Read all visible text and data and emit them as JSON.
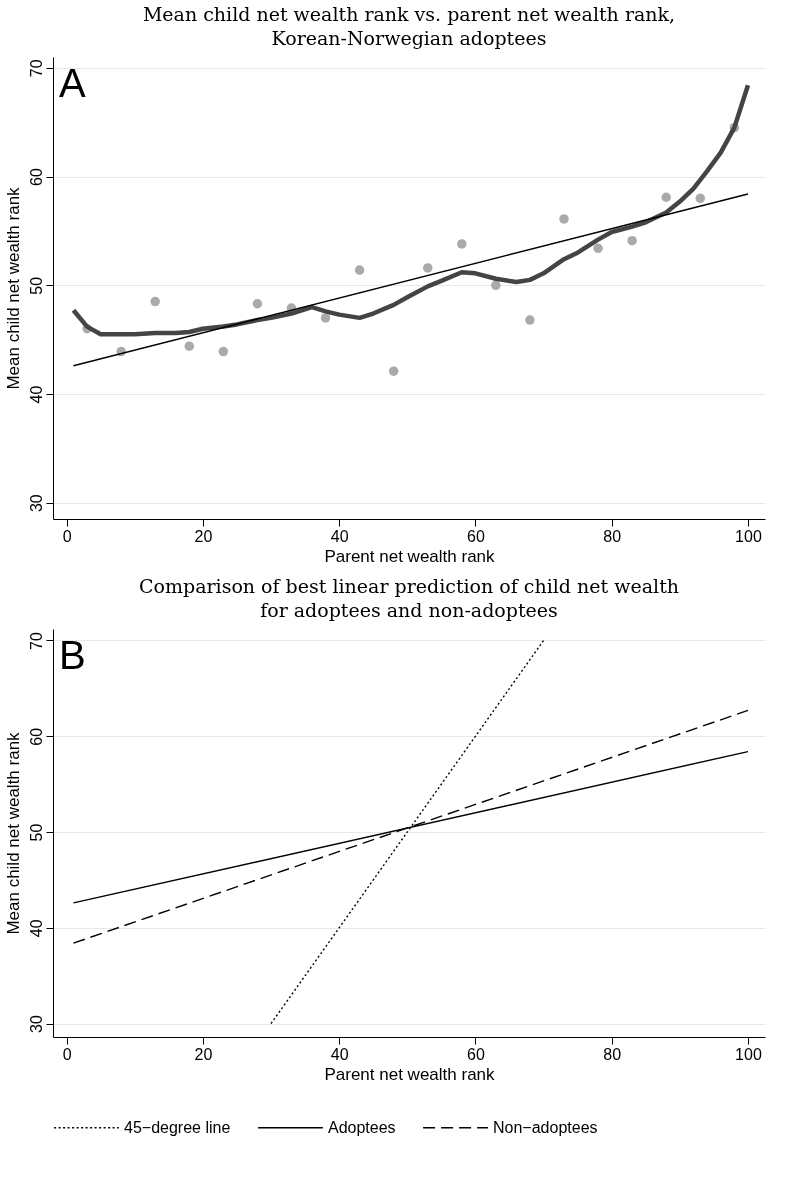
{
  "chart_data": [
    {
      "type": "scatter",
      "title": "Mean child net wealth rank vs. parent net wealth rank,\nKorean-Norwegian adoptees",
      "xlabel": "Parent net wealth rank",
      "ylabel": "Mean child net wealth rank",
      "annotations": [
        "A"
      ],
      "xlim": [
        -2,
        102.5
      ],
      "ylim": [
        28.5,
        71
      ],
      "xticks": [
        0,
        20,
        40,
        60,
        80,
        100
      ],
      "yticks": [
        30,
        40,
        50,
        60,
        70
      ],
      "grid": "y",
      "series": [
        {
          "type": "scatter",
          "marker": "circle",
          "color": "#aaaaaa",
          "x": [
            3,
            8,
            13,
            18,
            23,
            28,
            33,
            38,
            43,
            48,
            53,
            58,
            63,
            68,
            73,
            78,
            83,
            88,
            93,
            98
          ],
          "values": [
            46.0,
            43.9,
            48.5,
            44.4,
            43.9,
            48.3,
            47.9,
            47.0,
            51.4,
            42.1,
            51.6,
            53.8,
            50.0,
            46.8,
            56.1,
            53.4,
            54.1,
            58.1,
            58.0,
            64.5
          ]
        },
        {
          "type": "line",
          "line_style": "solid",
          "color": "#444444",
          "x": [
            1,
            3,
            5,
            8,
            10,
            13,
            16,
            18,
            20,
            23,
            25,
            28,
            30,
            33,
            36,
            38,
            40,
            43,
            45,
            48,
            50,
            53,
            55,
            58,
            60,
            63,
            66,
            68,
            70,
            73,
            75,
            78,
            80,
            83,
            85,
            88,
            90,
            92,
            94,
            96,
            98,
            100
          ],
          "values": [
            47.7,
            46.2,
            45.5,
            45.5,
            45.5,
            45.6,
            45.6,
            45.7,
            46.0,
            46.2,
            46.4,
            46.8,
            47.0,
            47.4,
            48.0,
            47.6,
            47.3,
            47.0,
            47.4,
            48.2,
            48.9,
            49.9,
            50.4,
            51.2,
            51.1,
            50.6,
            50.3,
            50.5,
            51.1,
            52.4,
            53.0,
            54.2,
            54.9,
            55.4,
            55.8,
            56.7,
            57.7,
            58.9,
            60.5,
            62.2,
            64.5,
            68.4
          ]
        },
        {
          "type": "line",
          "line_style": "solid",
          "color": "#000000",
          "x": [
            1,
            100
          ],
          "values": [
            42.6,
            58.4
          ]
        }
      ]
    },
    {
      "type": "line",
      "title": "Comparison of best linear prediction of child net wealth\nfor adoptees and non-adoptees",
      "xlabel": "Parent net wealth rank",
      "ylabel": "Mean child net wealth rank",
      "annotations": [
        "B"
      ],
      "xlim": [
        -2,
        102.5
      ],
      "ylim": [
        28.6,
        71.2
      ],
      "xticks": [
        0,
        20,
        40,
        60,
        80,
        100
      ],
      "yticks": [
        30,
        40,
        50,
        60,
        70
      ],
      "grid": "y",
      "legend": "bottom",
      "series": [
        {
          "name": "45−degree line",
          "line_style": "dotted",
          "color": "#000000",
          "x": [
            30,
            70
          ],
          "values": [
            30,
            70
          ]
        },
        {
          "name": "Adoptees",
          "line_style": "solid",
          "color": "#000000",
          "x": [
            1,
            100
          ],
          "values": [
            42.6,
            58.4
          ]
        },
        {
          "name": "Non−adoptees",
          "line_style": "dashed",
          "color": "#000000",
          "x": [
            1,
            100
          ],
          "values": [
            38.4,
            62.7
          ]
        }
      ]
    }
  ]
}
